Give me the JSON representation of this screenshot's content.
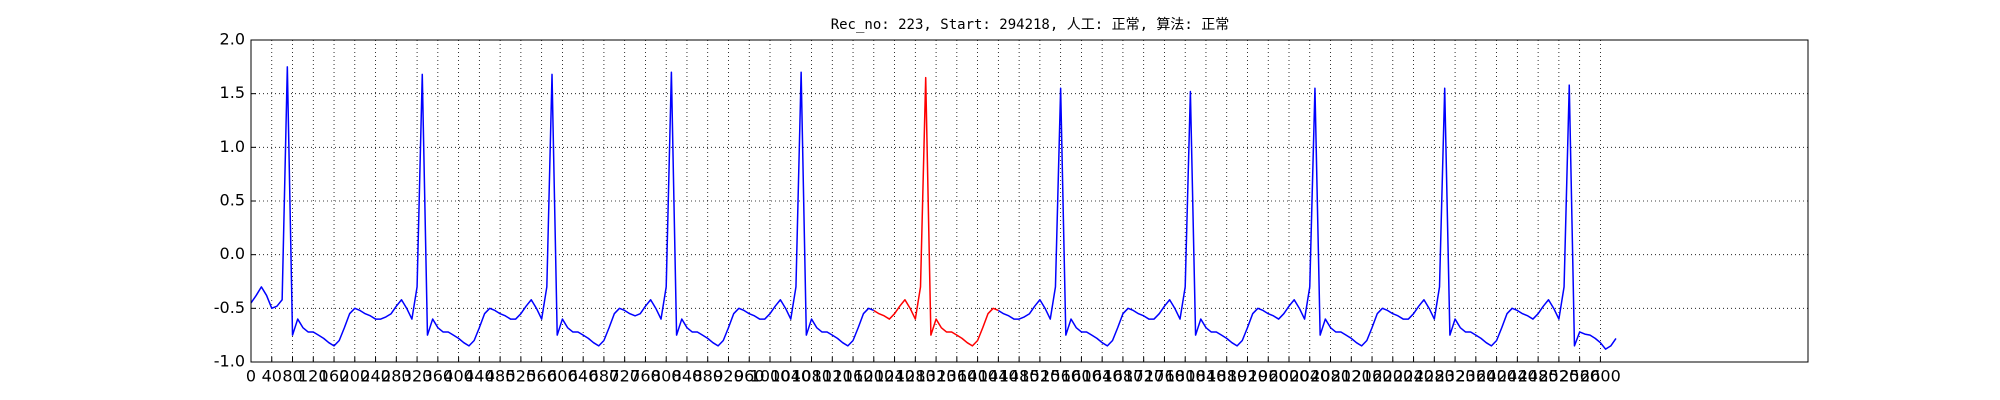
{
  "chart_data": {
    "type": "line",
    "title": "Rec_no: 223, Start: 294218, 人工: 正常, 算法: 正常",
    "x": [
      0,
      10,
      20,
      30,
      40,
      50,
      60,
      70,
      80,
      90,
      100,
      110,
      120,
      130,
      140,
      150,
      160,
      170,
      180,
      190,
      200,
      210,
      220,
      230,
      240,
      250,
      260,
      270,
      280,
      290,
      300,
      310,
      320,
      330,
      340,
      350,
      360,
      370,
      380,
      390,
      400,
      410,
      420,
      430,
      440,
      450,
      460,
      470,
      480,
      490,
      500,
      510,
      520,
      530,
      540,
      550,
      560,
      570,
      580,
      590,
      600,
      610,
      620,
      630,
      640,
      650,
      660,
      670,
      680,
      690,
      700,
      710,
      720,
      730,
      740,
      750,
      760,
      770,
      780,
      790,
      800,
      810,
      820,
      830,
      840,
      850,
      860,
      870,
      880,
      890,
      900,
      910,
      920,
      930,
      940,
      950,
      960,
      970,
      980,
      990,
      1000,
      1010,
      1020,
      1030,
      1040,
      1050,
      1060,
      1070,
      1080,
      1090,
      1100,
      1110,
      1120,
      1130,
      1140,
      1150,
      1160,
      1170,
      1180,
      1190,
      1200,
      1210,
      1220,
      1230,
      1240,
      1250,
      1260,
      1270,
      1280,
      1290,
      1300,
      1310,
      1320,
      1330,
      1340,
      1350,
      1360,
      1370,
      1380,
      1390,
      1400,
      1410,
      1420,
      1430,
      1440,
      1450,
      1460,
      1470,
      1480,
      1490,
      1500,
      1510,
      1520,
      1530,
      1540,
      1550,
      1560,
      1570,
      1580,
      1590,
      1600,
      1610,
      1620,
      1630,
      1640,
      1650,
      1660,
      1670,
      1680,
      1690,
      1700,
      1710,
      1720,
      1730,
      1740,
      1750,
      1760,
      1770,
      1780,
      1790,
      1800,
      1810,
      1820,
      1830,
      1840,
      1850,
      1860,
      1870,
      1880,
      1890,
      1900,
      1910,
      1920,
      1930,
      1940,
      1950,
      1960,
      1970,
      1980,
      1990,
      2000,
      2010,
      2020,
      2030,
      2040,
      2050,
      2060,
      2070,
      2080,
      2090,
      2100,
      2110,
      2120,
      2130,
      2140,
      2150,
      2160,
      2170,
      2180,
      2190,
      2200,
      2210,
      2220,
      2230,
      2240,
      2250,
      2260,
      2270,
      2280,
      2290,
      2300,
      2310,
      2320,
      2330,
      2340,
      2350,
      2360,
      2370,
      2380,
      2390,
      2400,
      2410,
      2420,
      2430,
      2440,
      2450,
      2460,
      2470,
      2480,
      2490,
      2500,
      2510,
      2520,
      2530,
      2540,
      2550,
      2560,
      2570,
      2580,
      2590,
      2600,
      2610,
      2620,
      2630
    ],
    "series": [
      {
        "color": "#0000ff",
        "values": [
          -0.45,
          -0.38,
          -0.3,
          -0.38,
          -0.5,
          -0.48,
          -0.42,
          1.75,
          -0.75,
          -0.6,
          -0.68,
          -0.72,
          -0.72,
          -0.75,
          -0.78,
          -0.82,
          -0.85,
          -0.8,
          -0.68,
          -0.55,
          -0.5,
          -0.52,
          -0.55,
          -0.57,
          -0.6,
          -0.6,
          -0.58,
          -0.55,
          -0.48,
          -0.42,
          -0.5,
          -0.6,
          -0.3,
          1.68,
          -0.75,
          -0.6,
          -0.68,
          -0.72,
          -0.72,
          -0.75,
          -0.78,
          -0.82,
          -0.85,
          -0.8,
          -0.68,
          -0.55,
          -0.5,
          -0.52,
          -0.55,
          -0.57,
          -0.6,
          -0.6,
          -0.55,
          -0.48,
          -0.42,
          -0.5,
          -0.6,
          -0.3,
          1.68,
          -0.75,
          -0.6,
          -0.68,
          -0.72,
          -0.72,
          -0.75,
          -0.78,
          -0.82,
          -0.85,
          -0.8,
          -0.68,
          -0.55,
          -0.5,
          -0.52,
          -0.55,
          -0.57,
          -0.55,
          -0.48,
          -0.42,
          -0.5,
          -0.6,
          -0.3,
          1.7,
          -0.75,
          -0.6,
          -0.68,
          -0.72,
          -0.72,
          -0.75,
          -0.78,
          -0.82,
          -0.85,
          -0.8,
          -0.68,
          -0.55,
          -0.5,
          -0.52,
          -0.55,
          -0.57,
          -0.6,
          -0.6,
          -0.55,
          -0.48,
          -0.42,
          -0.5,
          -0.6,
          -0.3,
          1.7,
          -0.75,
          -0.6,
          -0.68,
          -0.72,
          -0.72,
          -0.75,
          -0.78,
          -0.82,
          -0.85,
          -0.8,
          -0.68,
          -0.55,
          -0.5,
          -0.52,
          null,
          null,
          null,
          null,
          null,
          null,
          null,
          null,
          null,
          null,
          null,
          null,
          null,
          null,
          null,
          null,
          null,
          null,
          null,
          null,
          null,
          null,
          null,
          -0.52,
          -0.55,
          -0.57,
          -0.6,
          -0.6,
          -0.58,
          -0.55,
          -0.48,
          -0.42,
          -0.5,
          -0.6,
          -0.3,
          1.55,
          -0.75,
          -0.6,
          -0.68,
          -0.72,
          -0.72,
          -0.75,
          -0.78,
          -0.82,
          -0.85,
          -0.8,
          -0.68,
          -0.55,
          -0.5,
          -0.52,
          -0.55,
          -0.57,
          -0.6,
          -0.6,
          -0.55,
          -0.48,
          -0.42,
          -0.5,
          -0.6,
          -0.3,
          1.52,
          -0.75,
          -0.6,
          -0.68,
          -0.72,
          -0.72,
          -0.75,
          -0.78,
          -0.82,
          -0.85,
          -0.8,
          -0.68,
          -0.55,
          -0.5,
          -0.52,
          -0.55,
          -0.57,
          -0.6,
          -0.55,
          -0.48,
          -0.42,
          -0.5,
          -0.6,
          -0.3,
          1.55,
          -0.75,
          -0.6,
          -0.68,
          -0.72,
          -0.72,
          -0.75,
          -0.78,
          -0.82,
          -0.85,
          -0.8,
          -0.68,
          -0.55,
          -0.5,
          -0.52,
          -0.55,
          -0.57,
          -0.6,
          -0.6,
          -0.55,
          -0.48,
          -0.42,
          -0.5,
          -0.6,
          -0.3,
          1.55,
          -0.75,
          -0.6,
          -0.68,
          -0.72,
          -0.72,
          -0.75,
          -0.78,
          -0.82,
          -0.85,
          -0.8,
          -0.68,
          -0.55,
          -0.5,
          -0.52,
          -0.55,
          -0.57,
          -0.6,
          -0.55,
          -0.48,
          -0.42,
          -0.5,
          -0.6,
          -0.3,
          1.58,
          -0.85,
          -0.72,
          -0.74,
          -0.75,
          -0.78,
          -0.82,
          -0.88,
          -0.85,
          -0.78
        ]
      },
      {
        "color": "#ff0000",
        "x": [
          1200,
          1210,
          1220,
          1230,
          1240,
          1250,
          1260,
          1270,
          1280,
          1290,
          1300,
          1310,
          1320,
          1330,
          1340,
          1350,
          1360,
          1370,
          1380,
          1390,
          1400,
          1410,
          1420,
          1430,
          1440
        ],
        "values": [
          -0.52,
          -0.55,
          -0.57,
          -0.6,
          -0.55,
          -0.48,
          -0.42,
          -0.5,
          -0.6,
          -0.3,
          1.65,
          -0.75,
          -0.6,
          -0.68,
          -0.72,
          -0.72,
          -0.75,
          -0.78,
          -0.82,
          -0.85,
          -0.8,
          -0.68,
          -0.55,
          -0.5,
          -0.52
        ]
      }
    ],
    "xlim": [
      0,
      3000
    ],
    "xticks": [
      0,
      40,
      80,
      120,
      160,
      200,
      240,
      280,
      320,
      360,
      400,
      440,
      480,
      520,
      560,
      600,
      640,
      680,
      720,
      760,
      800,
      840,
      880,
      920,
      960,
      1000,
      1040,
      1080,
      1120,
      1160,
      1200,
      1240,
      1280,
      1320,
      1360,
      1400,
      1440,
      1480,
      1520,
      1560,
      1600,
      1640,
      1680,
      1720,
      1760,
      1800,
      1840,
      1880,
      1920,
      1960,
      2000,
      2040,
      2080,
      2120,
      2160,
      2200,
      2240,
      2280,
      2320,
      2360,
      2400,
      2440,
      2480,
      2520,
      2560,
      2600
    ],
    "ylim": [
      -1,
      2
    ],
    "yticks": [
      {
        "value": -1,
        "label": "-1.0"
      },
      -0.5,
      {
        "value": 0,
        "label": "0.0"
      },
      0.5,
      {
        "value": 1,
        "label": "1.0"
      },
      1.5,
      {
        "value": 2,
        "label": "2.0"
      }
    ],
    "grid": true
  }
}
